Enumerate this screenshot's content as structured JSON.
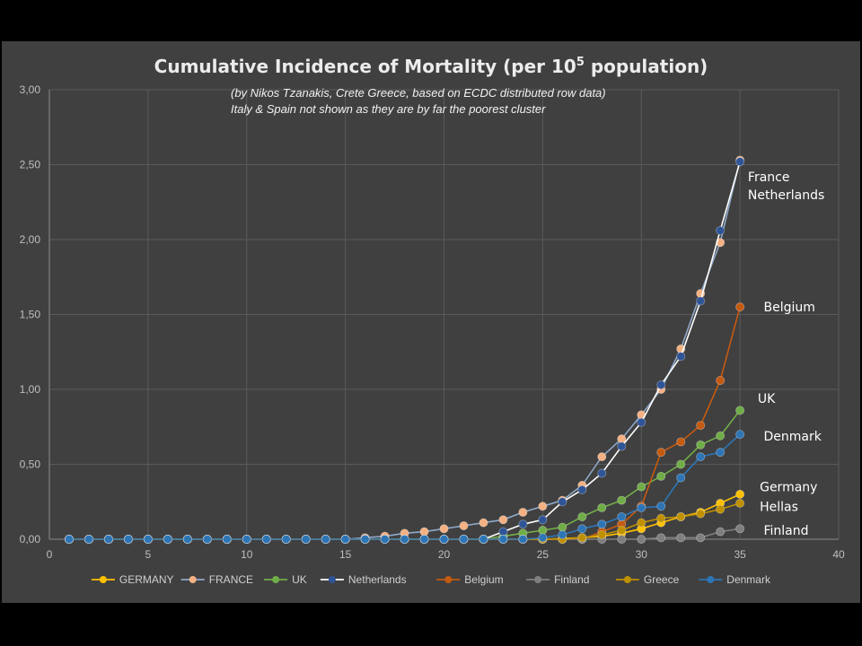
{
  "chart_data": {
    "type": "line",
    "title": "Cumulative Incidence of Mortality (per 10",
    "title_sup": "5",
    "title_end": " population)",
    "subtitle_lines": [
      "(by Nikos Tzanakis, Crete Greece, based on ECDC distributed row data)",
      "Italy & Spain not shown as they are by far the poorest cluster"
    ],
    "xlim": [
      0,
      40
    ],
    "ylim": [
      0,
      3
    ],
    "x_ticks": [
      "0",
      "5",
      "10",
      "15",
      "20",
      "25",
      "30",
      "35",
      "40"
    ],
    "y_ticks": [
      "0,00",
      "0,50",
      "1,00",
      "1,50",
      "2,00",
      "2,50",
      "3,00"
    ],
    "grid": true,
    "legend_position": "bottom",
    "background": "#404040",
    "x": [
      1,
      2,
      3,
      4,
      5,
      6,
      7,
      8,
      9,
      10,
      11,
      12,
      13,
      14,
      15,
      16,
      17,
      18,
      19,
      20,
      21,
      22,
      23,
      24,
      25,
      26,
      27,
      28,
      29,
      30,
      31,
      32,
      33,
      34,
      35
    ],
    "series": [
      {
        "name": "GERMANY",
        "color": "#ffc000",
        "line": "#ffc000",
        "values": [
          0,
          0,
          0,
          0,
          0,
          0,
          0,
          0,
          0,
          0,
          0,
          0,
          0,
          0,
          0,
          0,
          0,
          0,
          0,
          0,
          0,
          0,
          0,
          0,
          0,
          0.005,
          0.01,
          0.02,
          0.04,
          0.07,
          0.11,
          0.15,
          0.18,
          0.24,
          0.3
        ]
      },
      {
        "name": "FRANCE",
        "color": "#f4b183",
        "line": "#8fa9c8",
        "values": [
          0,
          0,
          0,
          0,
          0,
          0,
          0,
          0,
          0,
          0,
          0,
          0,
          0,
          0,
          0,
          0.01,
          0.02,
          0.04,
          0.05,
          0.07,
          0.09,
          0.11,
          0.13,
          0.18,
          0.22,
          0.26,
          0.36,
          0.55,
          0.67,
          0.83,
          1.0,
          1.27,
          1.64,
          1.98,
          2.53
        ]
      },
      {
        "name": "UK",
        "color": "#70ad47",
        "line": "#70ad47",
        "values": [
          0,
          0,
          0,
          0,
          0,
          0,
          0,
          0,
          0,
          0,
          0,
          0,
          0,
          0,
          0,
          0,
          0,
          0,
          0,
          0,
          0,
          0,
          0.02,
          0.04,
          0.06,
          0.08,
          0.15,
          0.21,
          0.26,
          0.35,
          0.42,
          0.5,
          0.63,
          0.69,
          0.86
        ]
      },
      {
        "name": "Netherlands",
        "color": "#2f5597",
        "line": "#ffffff",
        "values": [
          0,
          0,
          0,
          0,
          0,
          0,
          0,
          0,
          0,
          0,
          0,
          0,
          0,
          0,
          0,
          0,
          0,
          0,
          0,
          0,
          0,
          0,
          0.05,
          0.1,
          0.13,
          0.25,
          0.33,
          0.44,
          0.62,
          0.78,
          1.03,
          1.22,
          1.59,
          2.06,
          2.52
        ]
      },
      {
        "name": "Belgium",
        "color": "#c55a11",
        "line": "#c55a11",
        "values": [
          0,
          0,
          0,
          0,
          0,
          0,
          0,
          0,
          0,
          0,
          0,
          0,
          0,
          0,
          0,
          0,
          0,
          0,
          0,
          0,
          0,
          0,
          0,
          0,
          0,
          0,
          0,
          0.05,
          0.1,
          0.22,
          0.58,
          0.65,
          0.76,
          1.06,
          1.55
        ]
      },
      {
        "name": "Finland",
        "color": "#7f7f7f",
        "line": "#7f7f7f",
        "values": [
          0,
          0,
          0,
          0,
          0,
          0,
          0,
          0,
          0,
          0,
          0,
          0,
          0,
          0,
          0,
          0,
          0,
          0,
          0,
          0,
          0,
          0,
          0,
          0,
          0,
          0,
          0,
          0,
          0,
          0,
          0.01,
          0.01,
          0.01,
          0.05,
          0.07
        ]
      },
      {
        "name": "Greece",
        "color": "#bf9000",
        "line": "#bf9000",
        "values": [
          0,
          0,
          0,
          0,
          0,
          0,
          0,
          0,
          0,
          0,
          0,
          0,
          0,
          0,
          0,
          0,
          0,
          0,
          0,
          0,
          0,
          0,
          0,
          0,
          0,
          0,
          0.01,
          0.03,
          0.06,
          0.11,
          0.14,
          0.15,
          0.17,
          0.2,
          0.24
        ]
      },
      {
        "name": "Denmark",
        "color": "#2e75b6",
        "line": "#2e75b6",
        "values": [
          0,
          0,
          0,
          0,
          0,
          0,
          0,
          0,
          0,
          0,
          0,
          0,
          0,
          0,
          0,
          0,
          0,
          0,
          0,
          0,
          0,
          0,
          0,
          0,
          0.01,
          0.03,
          0.07,
          0.1,
          0.15,
          0.21,
          0.22,
          0.41,
          0.55,
          0.58,
          0.7
        ]
      }
    ],
    "annotations": [
      {
        "text": "France",
        "x": 35.4,
        "y": 2.42
      },
      {
        "text": "Netherlands",
        "x": 35.4,
        "y": 2.3
      },
      {
        "text": "Belgium",
        "x": 36.2,
        "y": 1.55
      },
      {
        "text": "UK",
        "x": 35.9,
        "y": 0.94
      },
      {
        "text": "Denmark",
        "x": 36.2,
        "y": 0.69
      },
      {
        "text": "Germany",
        "x": 36.0,
        "y": 0.35
      },
      {
        "text": "Hellas",
        "x": 36.0,
        "y": 0.22
      },
      {
        "text": "Finland",
        "x": 36.2,
        "y": 0.06
      }
    ]
  }
}
